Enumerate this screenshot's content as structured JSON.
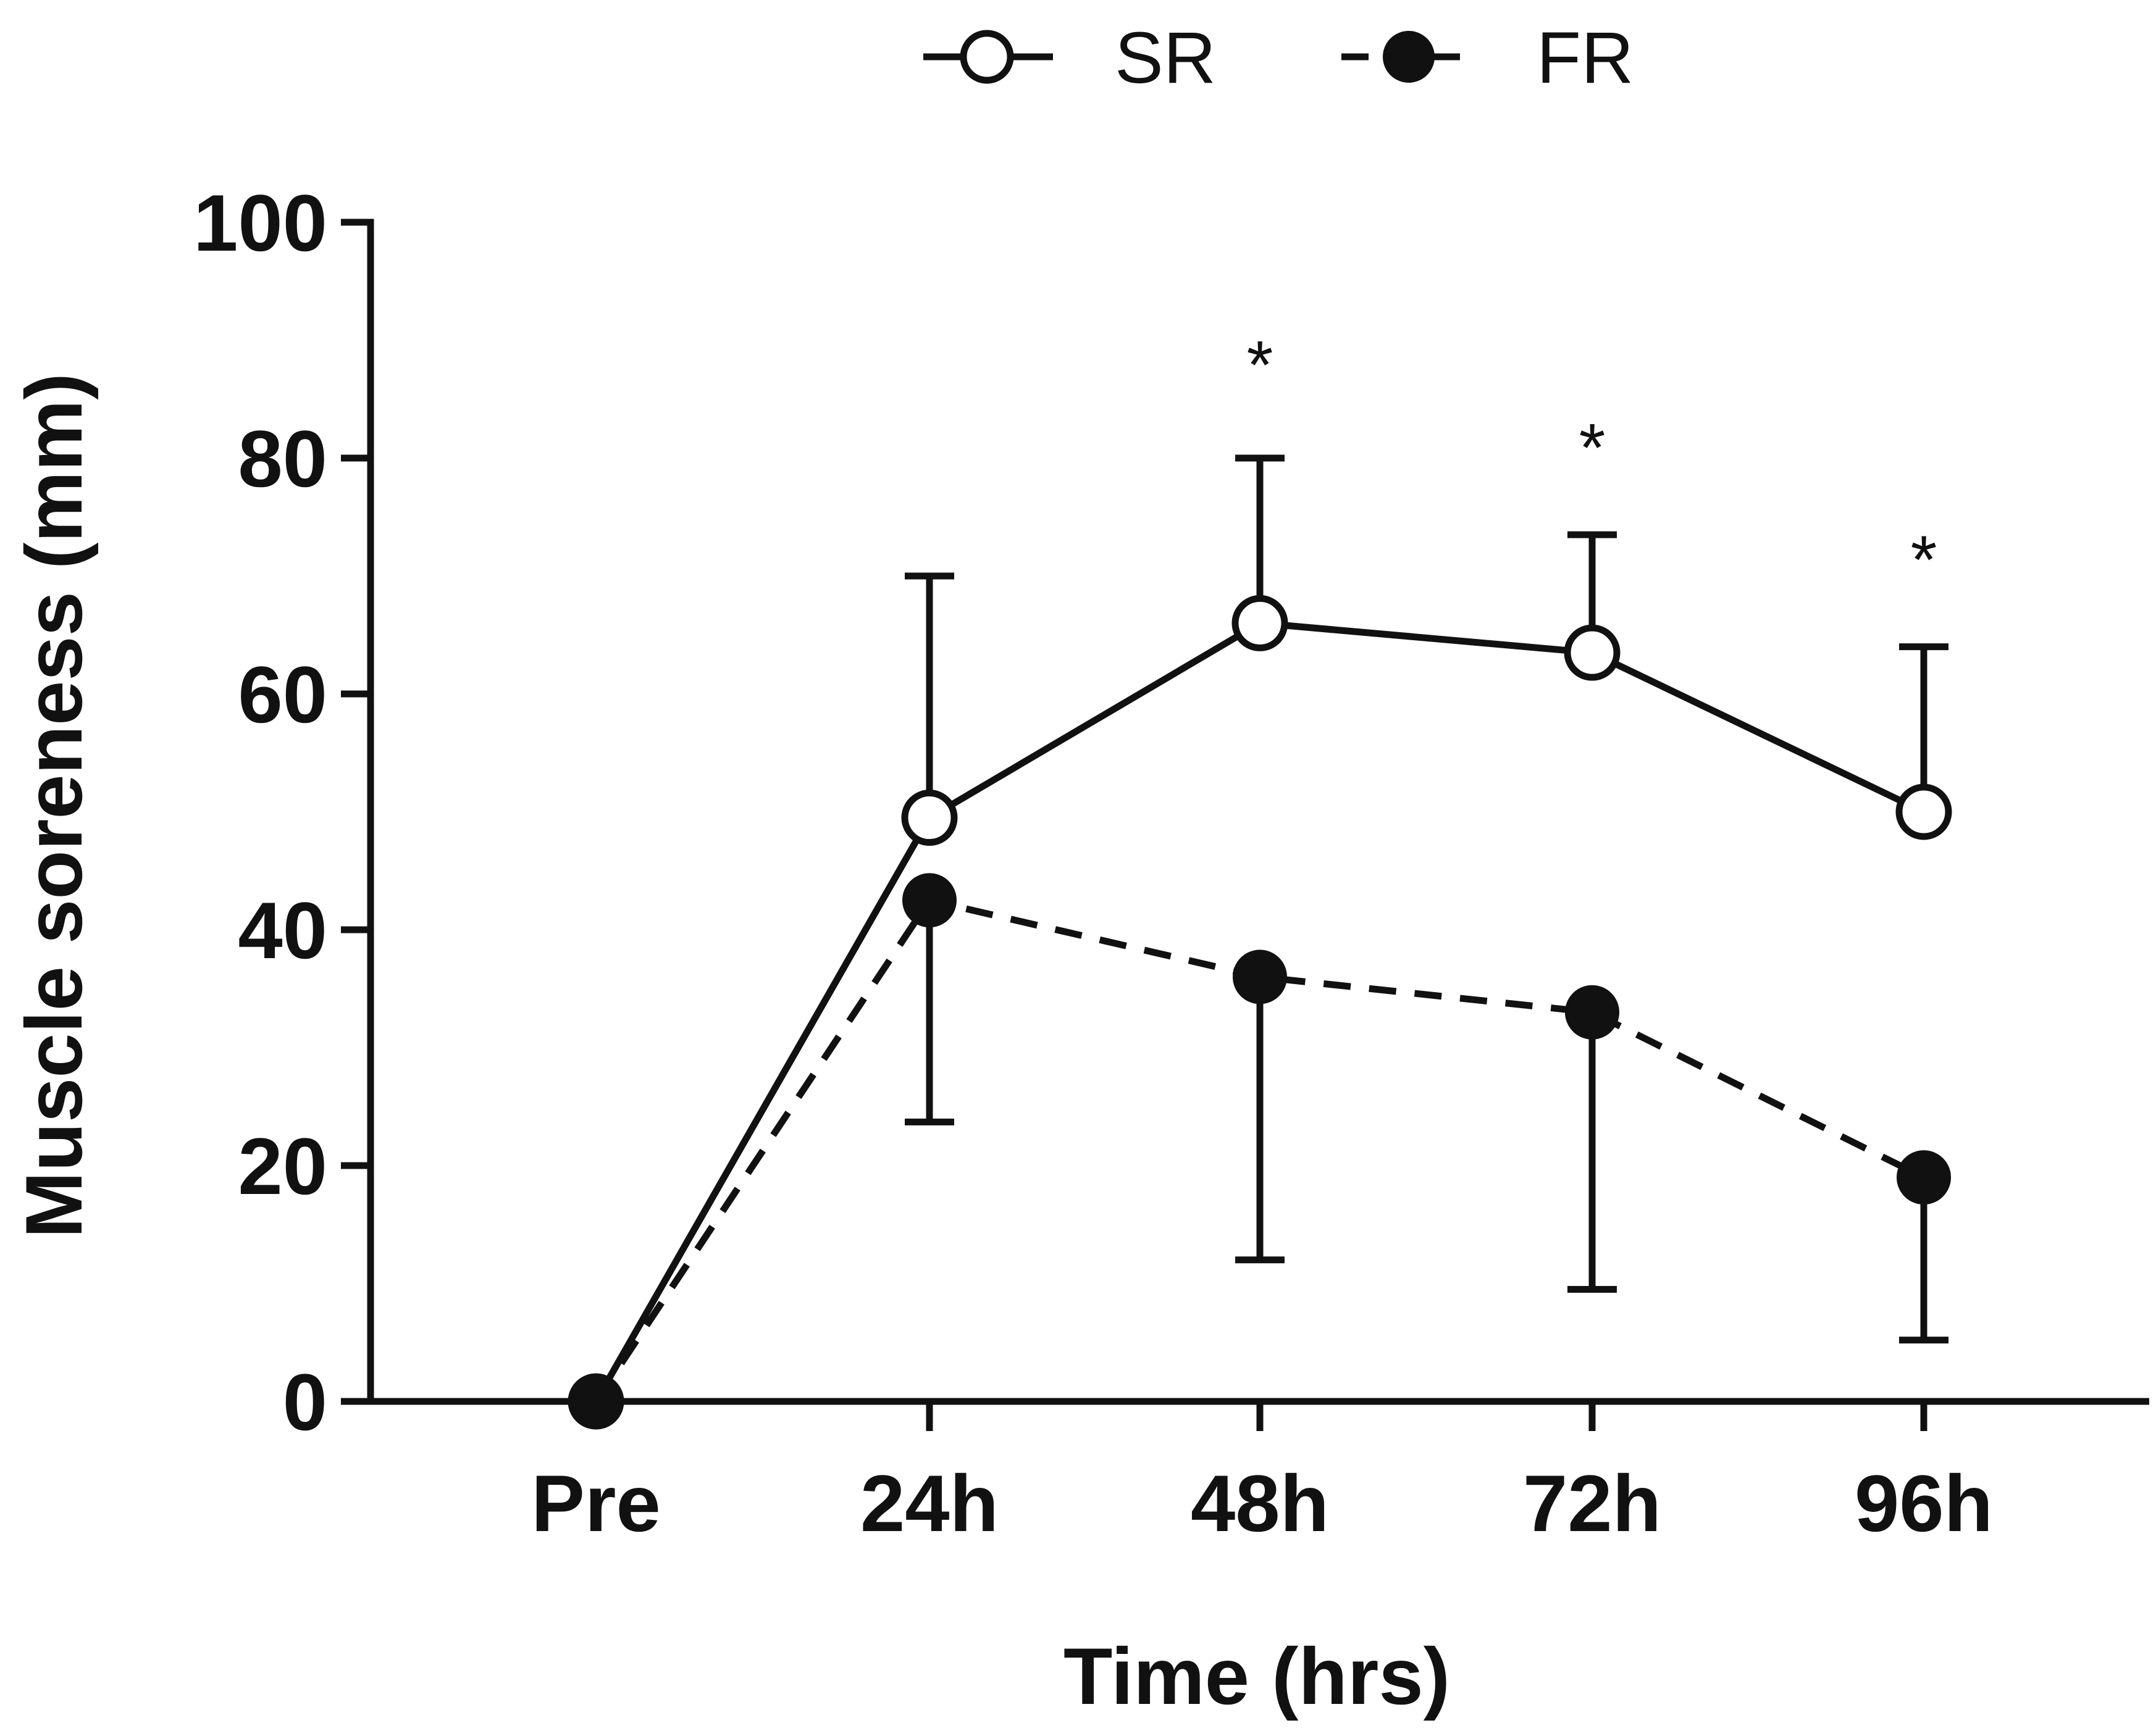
{
  "chart_data": {
    "type": "line",
    "title": "",
    "xlabel": "Time (hrs)",
    "ylabel": "Muscle soreness (mm)",
    "categories": [
      "Pre",
      "24h",
      "48h",
      "72h",
      "96h"
    ],
    "ylim": [
      0,
      100
    ],
    "yticks": [
      0,
      20,
      40,
      60,
      80,
      100
    ],
    "grid": false,
    "legend_position": "top-center",
    "series": [
      {
        "name": "SR",
        "line_style": "solid",
        "marker": "open-circle",
        "values": [
          0,
          49.5,
          66,
          63.5,
          50
        ],
        "error_upper": [
          0,
          20.5,
          14,
          10,
          14
        ],
        "error_direction": "up"
      },
      {
        "name": "FR",
        "line_style": "dashed",
        "marker": "filled-circle",
        "values": [
          0,
          42.5,
          36,
          33,
          19
        ],
        "error_lower": [
          0,
          18.8,
          24,
          23.5,
          13.8
        ],
        "error_direction": "down"
      }
    ],
    "annotations": [
      {
        "category": "48h",
        "text": "*",
        "y": 88
      },
      {
        "category": "72h",
        "text": "*",
        "y": 81
      },
      {
        "category": "96h",
        "text": "*",
        "y": 71.5
      }
    ]
  }
}
